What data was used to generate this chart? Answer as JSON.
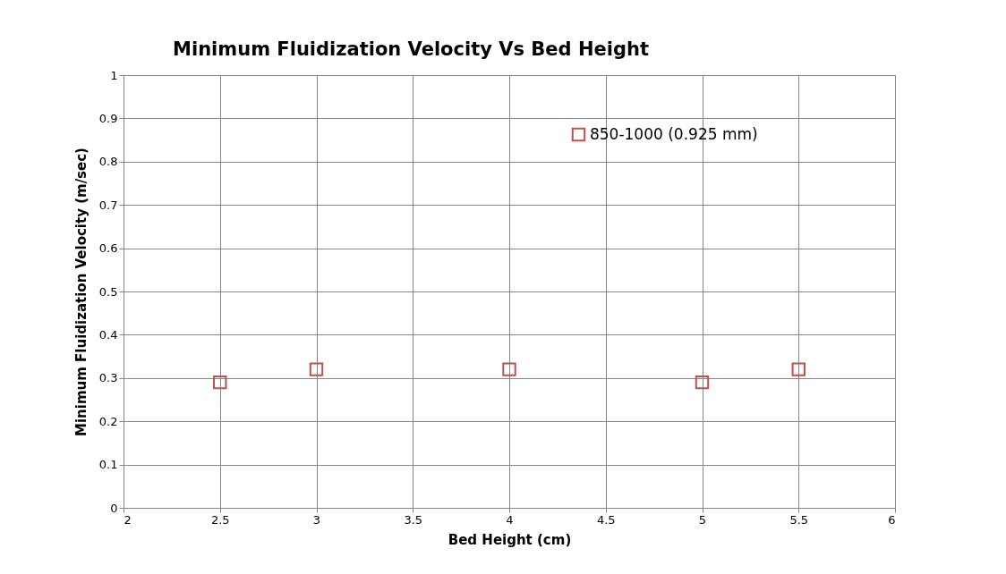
{
  "chart_data": {
    "type": "scatter",
    "title": "Minimum Fluidization Velocity Vs Bed Height",
    "xlabel": "Bed Height (cm)",
    "ylabel": "Minimum Fluidization Velocity (m/sec)",
    "x": [
      2.5,
      3,
      4,
      5,
      5.5
    ],
    "series": [
      {
        "name": "850-1000 (0.925 mm)",
        "color": "#c0504d",
        "values": [
          0.29,
          0.32,
          0.32,
          0.29,
          0.32
        ]
      }
    ],
    "xlim": [
      2,
      6
    ],
    "xticks": [
      2,
      2.5,
      3,
      3.5,
      4,
      4.5,
      5,
      5.5,
      6
    ],
    "ylim": [
      0,
      1
    ],
    "yticks": [
      0,
      0.1,
      0.2,
      0.3,
      0.4,
      0.5,
      0.6,
      0.7,
      0.8,
      0.9,
      1
    ],
    "grid": true,
    "legend": "top right",
    "marker": "square"
  }
}
